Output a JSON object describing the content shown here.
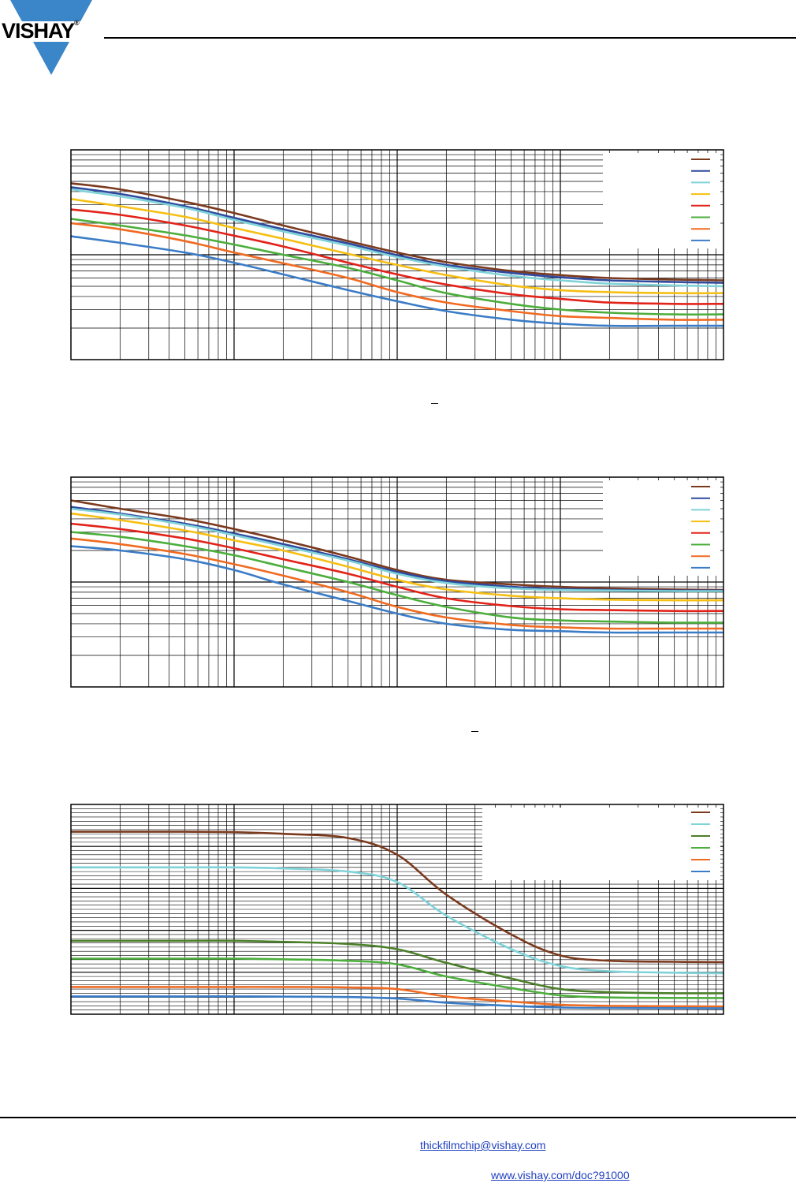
{
  "header": {
    "logo_text": "VISHAY",
    "logo_mark": "®",
    "logo_color": "#3b86c8"
  },
  "chart_data": [
    {
      "type": "line",
      "title": "",
      "xlabel": "",
      "ylabel": "",
      "x_scale": "log",
      "y_scale": "log",
      "xlim": [
        1,
        10000
      ],
      "ylim": [
        1,
        100
      ],
      "grid": true,
      "legend": "top-right",
      "x": [
        1,
        2,
        5,
        10,
        20,
        50,
        100,
        200,
        500,
        1000,
        2000,
        5000,
        10000
      ],
      "series": [
        {
          "color": "#7b3a1e",
          "values": [
            48,
            42,
            32,
            25,
            19,
            13.5,
            10.5,
            8.5,
            7.0,
            6.4,
            6.0,
            5.8,
            5.7
          ]
        },
        {
          "color": "#2f4a9e",
          "values": [
            44,
            38,
            29,
            22.5,
            17.5,
            12.8,
            9.9,
            8.0,
            6.7,
            6.1,
            5.7,
            5.5,
            5.4
          ]
        },
        {
          "color": "#7fd3d9",
          "values": [
            42,
            36,
            28,
            21.5,
            16.7,
            12.2,
            9.5,
            7.7,
            6.3,
            5.7,
            5.3,
            5.1,
            5.0
          ]
        },
        {
          "color": "#f5bf13",
          "values": [
            34,
            29,
            23,
            18,
            14.2,
            10.2,
            8.0,
            6.4,
            5.1,
            4.6,
            4.4,
            4.3,
            4.3
          ]
        },
        {
          "color": "#e2231a",
          "values": [
            27,
            24,
            19,
            15.2,
            12.0,
            8.4,
            6.5,
            5.2,
            4.2,
            3.8,
            3.5,
            3.4,
            3.4
          ]
        },
        {
          "color": "#4cae3c",
          "values": [
            22,
            19,
            15.3,
            12.5,
            10.0,
            7.5,
            5.7,
            4.3,
            3.4,
            3.0,
            2.8,
            2.7,
            2.7
          ]
        },
        {
          "color": "#f06b22",
          "values": [
            20,
            17.5,
            13.5,
            10.5,
            8.3,
            6.0,
            4.4,
            3.5,
            2.9,
            2.6,
            2.5,
            2.4,
            2.4
          ]
        },
        {
          "color": "#3b7cc6",
          "values": [
            15,
            13,
            10.5,
            8.4,
            6.5,
            4.6,
            3.6,
            2.9,
            2.4,
            2.2,
            2.1,
            2.1,
            2.1
          ]
        }
      ]
    },
    {
      "type": "line",
      "title": "",
      "xlabel": "",
      "ylabel": "",
      "x_scale": "log",
      "y_scale": "log",
      "xlim": [
        1,
        10000
      ],
      "ylim": [
        1,
        100
      ],
      "grid": true,
      "legend": "top-right",
      "x": [
        1,
        2,
        5,
        10,
        20,
        50,
        100,
        200,
        500,
        1000,
        2000,
        5000,
        10000
      ],
      "series": [
        {
          "color": "#7b3a1e",
          "values": [
            60,
            50,
            40,
            32,
            25,
            17.5,
            13.0,
            10.5,
            9.5,
            9.0,
            8.7,
            8.5,
            8.4
          ]
        },
        {
          "color": "#2f4a9e",
          "values": [
            52,
            45,
            36,
            29,
            23,
            16.5,
            12.5,
            10.2,
            9.0,
            8.6,
            8.4,
            8.3,
            8.3
          ]
        },
        {
          "color": "#7fd3d9",
          "values": [
            50,
            44,
            35,
            28,
            22,
            16,
            12,
            9.8,
            8.7,
            8.4,
            8.3,
            8.2,
            8.2
          ]
        },
        {
          "color": "#f5bf13",
          "values": [
            45,
            39,
            31,
            25,
            20,
            14,
            10.5,
            8.5,
            7.4,
            7.0,
            6.8,
            6.7,
            6.7
          ]
        },
        {
          "color": "#e2231a",
          "values": [
            36,
            32,
            26,
            21,
            16.5,
            12,
            9.0,
            7.0,
            5.9,
            5.5,
            5.4,
            5.3,
            5.3
          ]
        },
        {
          "color": "#4cae3c",
          "values": [
            30,
            27,
            22,
            18,
            14,
            10,
            7.5,
            5.8,
            4.6,
            4.3,
            4.2,
            4.1,
            4.1
          ]
        },
        {
          "color": "#f06b22",
          "values": [
            26,
            23,
            18.5,
            14.8,
            11.5,
            8.0,
            5.8,
            4.6,
            3.9,
            3.7,
            3.6,
            3.6,
            3.6
          ]
        },
        {
          "color": "#3b7cc6",
          "values": [
            22,
            20,
            16.5,
            13,
            9.5,
            6.6,
            5.0,
            4.0,
            3.5,
            3.4,
            3.3,
            3.3,
            3.3
          ]
        }
      ]
    },
    {
      "type": "line",
      "title": "",
      "xlabel": "",
      "ylabel": "",
      "x_scale": "log",
      "y_scale": "linear",
      "xlim": [
        1,
        10000
      ],
      "ylim": [
        0,
        1
      ],
      "grid": true,
      "legend": "top-right",
      "x": [
        1,
        2,
        5,
        10,
        20,
        50,
        100,
        200,
        500,
        1000,
        2000,
        5000,
        10000
      ],
      "series": [
        {
          "color": "#7b3a1e",
          "values": [
            0.87,
            0.87,
            0.87,
            0.868,
            0.86,
            0.84,
            0.76,
            0.57,
            0.38,
            0.28,
            0.255,
            0.25,
            0.248
          ]
        },
        {
          "color": "#7fd3d9",
          "values": [
            0.7,
            0.7,
            0.7,
            0.7,
            0.695,
            0.68,
            0.63,
            0.47,
            0.31,
            0.23,
            0.205,
            0.198,
            0.195
          ]
        },
        {
          "color": "#4b7f2a",
          "values": [
            0.35,
            0.35,
            0.35,
            0.35,
            0.345,
            0.335,
            0.31,
            0.245,
            0.17,
            0.12,
            0.105,
            0.1,
            0.1
          ]
        },
        {
          "color": "#4cae3c",
          "values": [
            0.265,
            0.265,
            0.265,
            0.265,
            0.262,
            0.255,
            0.238,
            0.18,
            0.125,
            0.09,
            0.08,
            0.078,
            0.077
          ]
        },
        {
          "color": "#f06b22",
          "values": [
            0.13,
            0.13,
            0.13,
            0.13,
            0.13,
            0.128,
            0.12,
            0.085,
            0.06,
            0.045,
            0.04,
            0.038,
            0.037
          ]
        },
        {
          "color": "#3b7cc6",
          "values": [
            0.085,
            0.085,
            0.085,
            0.085,
            0.084,
            0.082,
            0.075,
            0.055,
            0.04,
            0.032,
            0.03,
            0.029,
            0.028
          ]
        }
      ]
    }
  ],
  "footer": {
    "email": "thickfilmchip@vishay.com",
    "url": "www.vishay.com/doc?91000"
  }
}
